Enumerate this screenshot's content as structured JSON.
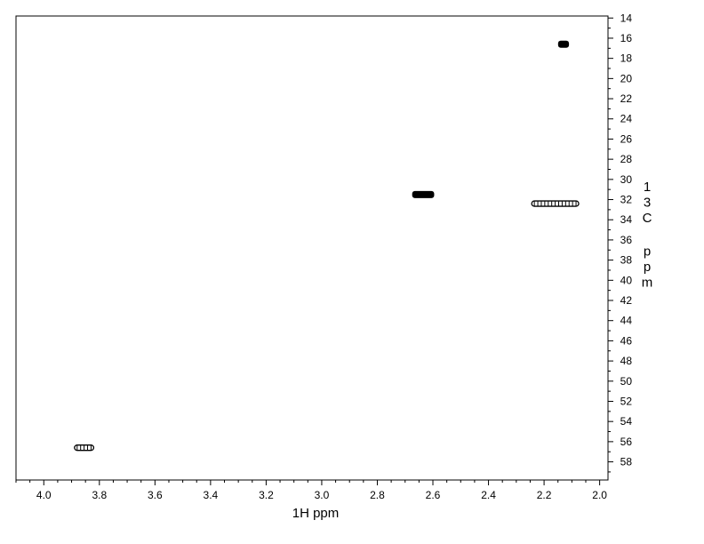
{
  "chart_data": {
    "type": "scatter",
    "title": "",
    "xlabel": "1H ppm",
    "ylabel": "13C ppm",
    "xlim": [
      4.1,
      1.97
    ],
    "ylim": [
      13.8,
      59.8
    ],
    "x_axis_reversed": true,
    "y_axis_position": "right",
    "y_axis_reversed": true,
    "x_major_ticks": [
      4.0,
      3.8,
      3.6,
      3.4,
      3.2,
      3.0,
      2.8,
      2.6,
      2.4,
      2.2,
      2.0
    ],
    "x_tick_labels": [
      "4.0",
      "3.8",
      "3.6",
      "3.4",
      "3.2",
      "3.0",
      "2.8",
      "2.6",
      "2.4",
      "2.2",
      "2.0"
    ],
    "y_major_ticks": [
      14,
      16,
      18,
      20,
      22,
      24,
      26,
      28,
      30,
      32,
      34,
      36,
      38,
      40,
      42,
      44,
      46,
      48,
      50,
      52,
      54,
      56,
      58
    ],
    "y_tick_labels": [
      "14",
      "16",
      "18",
      "20",
      "22",
      "24",
      "26",
      "28",
      "30",
      "32",
      "34",
      "36",
      "38",
      "40",
      "42",
      "44",
      "46",
      "48",
      "50",
      "52",
      "54",
      "56",
      "58"
    ],
    "grid": false,
    "peaks": [
      {
        "h": 2.13,
        "c": 16.6,
        "h_width": 0.02,
        "style": "filled"
      },
      {
        "h": 2.635,
        "c": 31.5,
        "h_width": 0.06,
        "style": "filled"
      },
      {
        "h": 2.16,
        "c": 32.4,
        "h_width": 0.15,
        "style": "open"
      },
      {
        "h": 3.855,
        "c": 56.6,
        "h_width": 0.05,
        "style": "open"
      }
    ]
  }
}
